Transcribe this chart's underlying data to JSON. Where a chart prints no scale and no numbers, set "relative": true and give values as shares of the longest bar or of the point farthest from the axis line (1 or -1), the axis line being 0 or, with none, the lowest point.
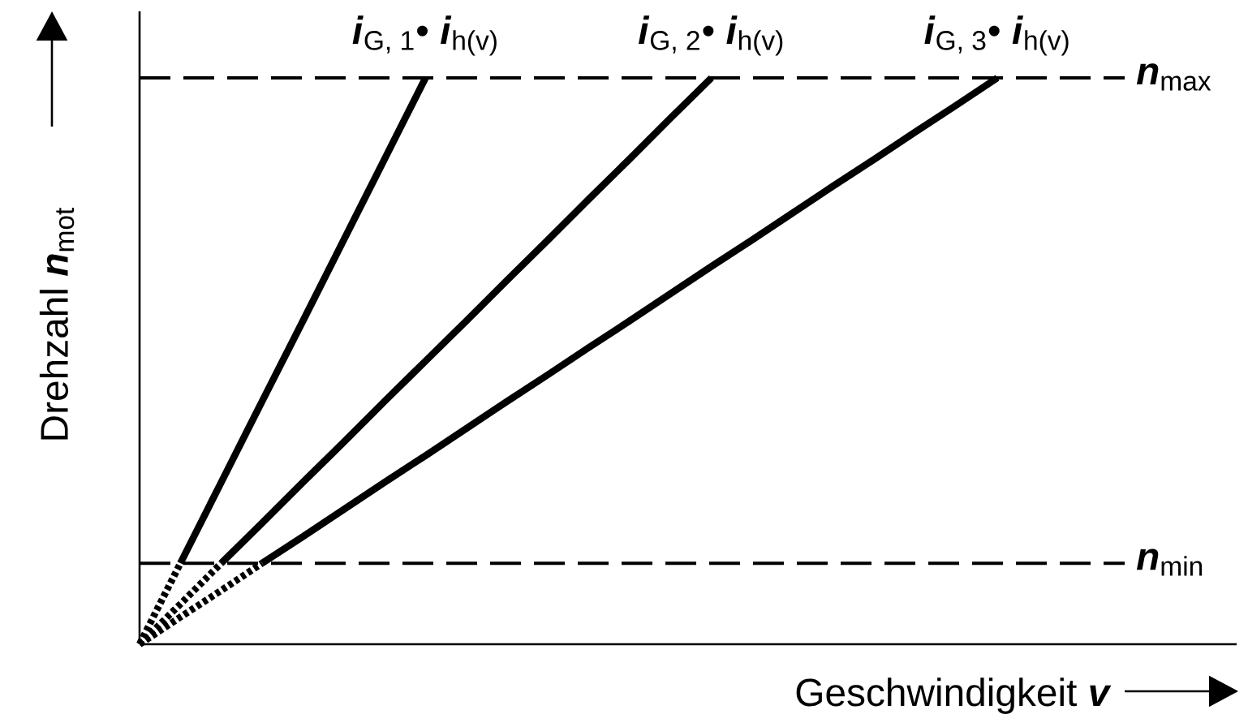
{
  "chart_data": {
    "type": "line",
    "relative": true,
    "tick_labels": false,
    "xlabel": "Geschwindigkeit **v**",
    "ylabel": "Drehzahl **n**$_{mot}$",
    "categories": [
      null,
      null,
      null,
      null,
      null,
      null,
      null,
      null,
      null,
      null,
      null,
      null,
      null,
      null,
      null,
      null,
      null,
      null,
      null,
      null,
      null,
      null
    ],
    "series": [
      {
        "name": "**i**$_{G, 1}$• **i**$_{h(v)}$",
        "color": "#000000",
        "line_style": "solid",
        "values": [
          null,
          0.143,
          0.286,
          0.429,
          0.571,
          0.714,
          0.857,
          1,
          null,
          null,
          null,
          null,
          null,
          null,
          null,
          null,
          null,
          null,
          null,
          null,
          null,
          null
        ]
      },
      {
        "color": "#000000",
        "line_style": "dotted",
        "values": [
          0,
          0.143,
          null,
          null,
          null,
          null,
          null,
          null,
          null,
          null,
          null,
          null,
          null,
          null,
          null,
          null,
          null,
          null,
          null,
          null,
          null,
          null
        ]
      },
      {
        "name": "**i**$_{G, 2}$• **i**$_{h(v)}$",
        "color": "#000000",
        "line_style": "solid",
        "values": [
          null,
          null,
          0.143,
          0.214,
          0.286,
          0.357,
          0.429,
          0.5,
          0.571,
          0.643,
          0.714,
          0.786,
          0.857,
          0.929,
          1,
          null,
          null,
          null,
          null,
          null,
          null,
          null
        ]
      },
      {
        "color": "#000000",
        "line_style": "dotted",
        "values": [
          0,
          0.071,
          0.143,
          null,
          null,
          null,
          null,
          null,
          null,
          null,
          null,
          null,
          null,
          null,
          null,
          null,
          null,
          null,
          null,
          null,
          null,
          null
        ]
      },
      {
        "name": "**i**$_{G, 3}$• **i**$_{h(v)}$",
        "color": "#000000",
        "line_style": "solid",
        "values": [
          null,
          null,
          null,
          0.143,
          0.19,
          0.238,
          0.286,
          0.333,
          0.381,
          0.429,
          0.476,
          0.524,
          0.571,
          0.619,
          0.667,
          0.714,
          0.762,
          0.81,
          0.857,
          0.905,
          0.952,
          1
        ]
      },
      {
        "color": "#000000",
        "line_style": "dotted",
        "values": [
          0,
          0.048,
          0.095,
          0.143,
          null,
          null,
          null,
          null,
          null,
          null,
          null,
          null,
          null,
          null,
          null,
          null,
          null,
          null,
          null,
          null,
          null,
          null
        ]
      }
    ],
    "ref_lines": [
      {
        "axis": "y",
        "value": 1,
        "label": "**n**$_{max}$",
        "line_style": "dashed",
        "color": "#000000"
      },
      {
        "axis": "y",
        "value": 0.143,
        "label": "**n**$_{min}$",
        "line_style": "dashed",
        "color": "#000000"
      }
    ]
  }
}
